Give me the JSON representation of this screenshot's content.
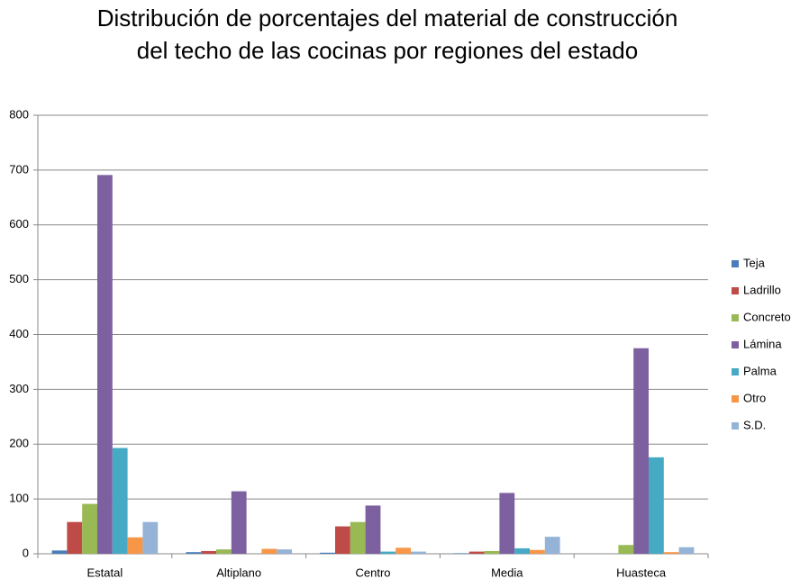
{
  "chart_data": {
    "type": "bar",
    "title": [
      "Distribución de porcentajes del material de construcción",
      "del techo de las cocinas por regiones del estado"
    ],
    "categories": [
      "Estatal",
      "Altiplano",
      "Centro",
      "Media",
      "Huasteca"
    ],
    "series": [
      {
        "name": "Teja",
        "color": "#4a7ebb",
        "values": [
          6,
          3,
          2,
          1,
          0
        ]
      },
      {
        "name": "Ladrillo",
        "color": "#be4b48",
        "values": [
          58,
          5,
          50,
          4,
          0
        ]
      },
      {
        "name": "Concreto",
        "color": "#98b954",
        "values": [
          91,
          8,
          58,
          5,
          16
        ]
      },
      {
        "name": "Lámina",
        "color": "#7d60a0",
        "values": [
          691,
          114,
          88,
          111,
          375
        ]
      },
      {
        "name": "Palma",
        "color": "#46aac5",
        "values": [
          193,
          0,
          4,
          10,
          176
        ]
      },
      {
        "name": "Otro",
        "color": "#f79646",
        "values": [
          30,
          9,
          11,
          7,
          3
        ]
      },
      {
        "name": "S.D.",
        "color": "#95b3d7",
        "values": [
          58,
          8,
          4,
          31,
          12
        ]
      }
    ],
    "ylim": [
      0,
      800
    ],
    "yticks": [
      0,
      100,
      200,
      300,
      400,
      500,
      600,
      700,
      800
    ],
    "grid": true,
    "legend": "right"
  }
}
